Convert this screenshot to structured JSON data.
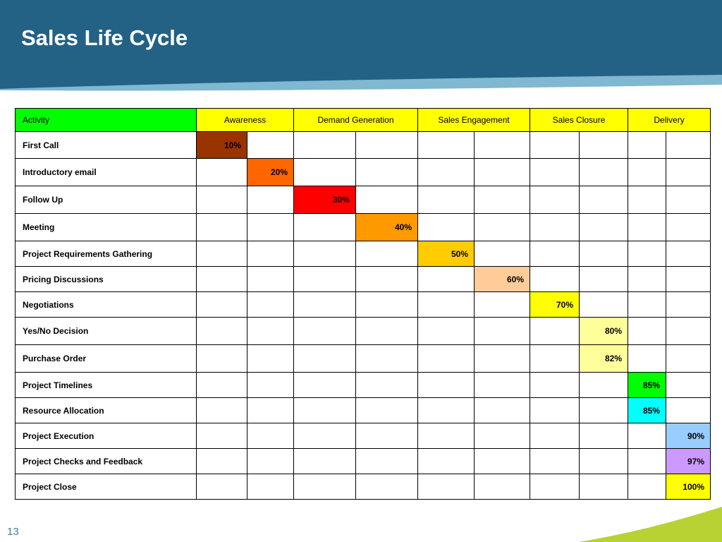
{
  "slide": {
    "title": "Sales Life Cycle",
    "page_number": "13"
  },
  "colors": {
    "header_band": "#236185",
    "header_accent": "#7fb8d0",
    "footer_accent": "#b8d233",
    "activity_header": "#00ff00",
    "stage_header": "#ffff00"
  },
  "table": {
    "activity_header": "Activity",
    "stages": [
      "Awareness",
      "Demand Generation",
      "Sales Engagement",
      "Sales Closure",
      "Delivery"
    ],
    "rows": [
      {
        "activity": "First Call",
        "column": 0,
        "value": "10%",
        "color": "#993300"
      },
      {
        "activity": "Introductory email",
        "column": 1,
        "value": "20%",
        "color": "#ff6600"
      },
      {
        "activity": "Follow Up",
        "column": 2,
        "value": "30%",
        "color": "#ff0000"
      },
      {
        "activity": "Meeting",
        "column": 3,
        "value": "40%",
        "color": "#ff9900"
      },
      {
        "activity": "Project Requirements Gathering",
        "column": 4,
        "value": "50%",
        "color": "#ffcc00"
      },
      {
        "activity": "Pricing Discussions",
        "column": 5,
        "value": "60%",
        "color": "#ffcc99"
      },
      {
        "activity": "Negotiations",
        "column": 6,
        "value": "70%",
        "color": "#ffff00"
      },
      {
        "activity": "Yes/No Decision",
        "column": 7,
        "value": "80%",
        "color": "#ffff99"
      },
      {
        "activity": "Purchase Order",
        "column": 7,
        "value": "82%",
        "color": "#ffff99"
      },
      {
        "activity": "Project Timelines",
        "column": 8,
        "value": "85%",
        "color": "#00ff00"
      },
      {
        "activity": "Resource Allocation",
        "column": 8,
        "value": "85%",
        "color": "#00ffff"
      },
      {
        "activity": "Project Execution",
        "column": 9,
        "value": "90%",
        "color": "#99ccff"
      },
      {
        "activity": "Project Checks and Feedback",
        "column": 9,
        "value": "97%",
        "color": "#cc99ff"
      },
      {
        "activity": "Project Close",
        "column": 9,
        "value": "100%",
        "color": "#ffff00"
      }
    ]
  }
}
